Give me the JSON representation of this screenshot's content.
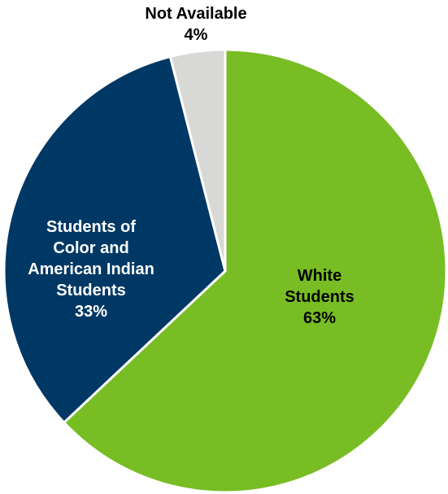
{
  "chart_data": {
    "type": "pie",
    "title": "",
    "slices": [
      {
        "key": "white",
        "label_lines": [
          "White",
          "Students"
        ],
        "pct_label": "63%",
        "value": 63,
        "color": "#78bd24",
        "text_color": "#000000"
      },
      {
        "key": "color",
        "label_lines": [
          "Students of",
          "Color and",
          "American Indian",
          "Students"
        ],
        "pct_label": "33%",
        "value": 33,
        "color": "#003865",
        "text_color": "#ffffff"
      },
      {
        "key": "na",
        "label_lines": [
          "Not Available"
        ],
        "pct_label": "4%",
        "value": 4,
        "color": "#d8d8d6",
        "text_color": "#000000"
      }
    ],
    "legend": "none"
  }
}
